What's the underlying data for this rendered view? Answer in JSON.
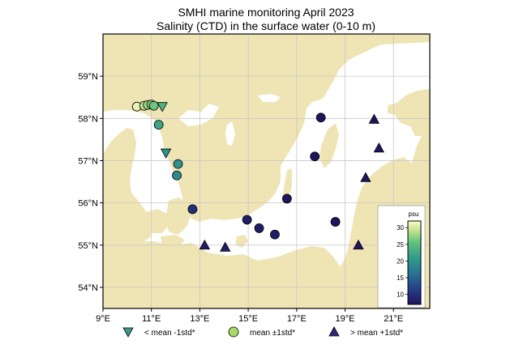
{
  "title": "SMHI marine monitoring April 2023",
  "subtitle": "Salinity (CTD) in the surface water (0-10 m)",
  "map": {
    "lon_range": [
      9,
      22.5
    ],
    "lat_range": [
      53.5,
      60
    ],
    "x_ticks": [
      {
        "value": 9,
        "label": "9°E"
      },
      {
        "value": 11,
        "label": "11°E"
      },
      {
        "value": 13,
        "label": "13°E"
      },
      {
        "value": 15,
        "label": "15°E"
      },
      {
        "value": 17,
        "label": "17°E"
      },
      {
        "value": 19,
        "label": "19°E"
      },
      {
        "value": 21,
        "label": "21°E"
      }
    ],
    "y_ticks": [
      {
        "value": 54,
        "label": "54°N"
      },
      {
        "value": 55,
        "label": "55°N"
      },
      {
        "value": 56,
        "label": "56°N"
      },
      {
        "value": 57,
        "label": "57°N"
      },
      {
        "value": 58,
        "label": "58°N"
      },
      {
        "value": 59,
        "label": "59°N"
      }
    ],
    "land_color": "#efe4b4",
    "sea_color": "#ffffff",
    "grid_color": "#c8c8c8"
  },
  "stations": [
    {
      "lon": 10.4,
      "lat": 58.28,
      "category": "mean",
      "salinity": 31
    },
    {
      "lon": 10.7,
      "lat": 58.3,
      "category": "mean",
      "salinity": 29
    },
    {
      "lon": 10.85,
      "lat": 58.32,
      "category": "mean",
      "salinity": 28
    },
    {
      "lon": 11.0,
      "lat": 58.33,
      "category": "mean",
      "salinity": 27
    },
    {
      "lon": 11.1,
      "lat": 58.3,
      "category": "mean",
      "salinity": 26
    },
    {
      "lon": 11.45,
      "lat": 58.28,
      "category": "low",
      "salinity": 24
    },
    {
      "lon": 11.3,
      "lat": 57.85,
      "category": "mean",
      "salinity": 22
    },
    {
      "lon": 11.6,
      "lat": 57.18,
      "category": "low",
      "salinity": 20
    },
    {
      "lon": 12.1,
      "lat": 56.92,
      "category": "mean",
      "salinity": 20
    },
    {
      "lon": 12.05,
      "lat": 56.65,
      "category": "mean",
      "salinity": 19
    },
    {
      "lon": 12.7,
      "lat": 55.85,
      "category": "mean",
      "salinity": 10
    },
    {
      "lon": 13.2,
      "lat": 55.0,
      "category": "high",
      "salinity": 8
    },
    {
      "lon": 14.05,
      "lat": 54.95,
      "category": "high",
      "salinity": 8
    },
    {
      "lon": 14.95,
      "lat": 55.6,
      "category": "mean",
      "salinity": 8
    },
    {
      "lon": 15.45,
      "lat": 55.4,
      "category": "mean",
      "salinity": 8
    },
    {
      "lon": 16.1,
      "lat": 55.25,
      "category": "mean",
      "salinity": 8
    },
    {
      "lon": 16.6,
      "lat": 56.1,
      "category": "mean",
      "salinity": 7
    },
    {
      "lon": 18.0,
      "lat": 58.02,
      "category": "mean",
      "salinity": 7
    },
    {
      "lon": 17.75,
      "lat": 57.1,
      "category": "mean",
      "salinity": 7
    },
    {
      "lon": 18.6,
      "lat": 55.55,
      "category": "mean",
      "salinity": 7
    },
    {
      "lon": 20.2,
      "lat": 57.98,
      "category": "high",
      "salinity": 7
    },
    {
      "lon": 20.4,
      "lat": 57.3,
      "category": "high",
      "salinity": 7
    },
    {
      "lon": 19.85,
      "lat": 56.6,
      "category": "high",
      "salinity": 7
    },
    {
      "lon": 19.55,
      "lat": 55.0,
      "category": "high",
      "salinity": 7
    }
  ],
  "colorbar": {
    "label": "psu",
    "min": 7,
    "max": 32,
    "ticks": [
      {
        "value": 10,
        "label": "10"
      },
      {
        "value": 15,
        "label": "15"
      },
      {
        "value": 20,
        "label": "20"
      },
      {
        "value": 25,
        "label": "25"
      },
      {
        "value": 30,
        "label": "30"
      }
    ]
  },
  "legend": [
    {
      "marker": "triangle-down",
      "label": "< mean -1std*",
      "color": "#3b9a8c"
    },
    {
      "marker": "circle",
      "label": "mean ±1std*",
      "color": "#a8da6a"
    },
    {
      "marker": "triangle-up",
      "label": "> mean +1std*",
      "color": "#2d2a7c"
    }
  ]
}
